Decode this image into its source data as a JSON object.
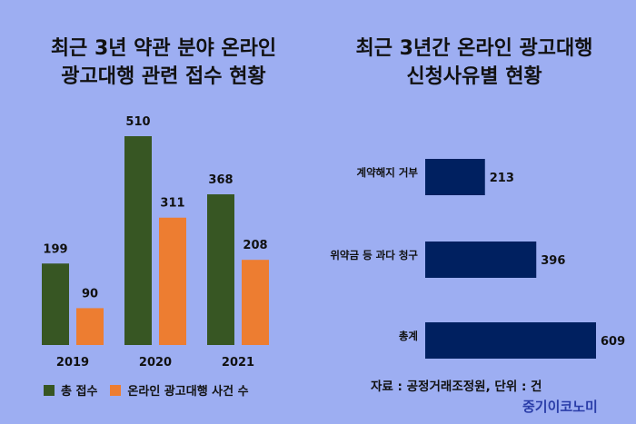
{
  "left_chart": {
    "title_line1": "최근 3년 약관 분야 온라인",
    "title_line2": "광고대행 관련 접수 현황"
  },
  "right_chart": {
    "title_line1": "최근 3년간 온라인 광고대행",
    "title_line2": "신청사유별 현황"
  },
  "legend": {
    "items": [
      {
        "label": "총 접수",
        "color": "#375623"
      },
      {
        "label": "온라인 광고대행 사건 수",
        "color": "#ED7D31"
      }
    ]
  },
  "source": "자료 : 공정거래조정원, 단위 : 건",
  "brand": "중기이코노미",
  "colors": {
    "background": "#9DAEF2",
    "green": "#375623",
    "orange": "#ED7D31",
    "navy": "#002060"
  },
  "chart_data": [
    {
      "type": "bar",
      "title": "최근 3년 약관 분야 온라인 광고대행 관련 접수 현황",
      "categories": [
        "2019",
        "2020",
        "2021"
      ],
      "series": [
        {
          "name": "총 접수",
          "values": [
            199,
            510,
            368
          ]
        },
        {
          "name": "온라인 광고대행 사건 수",
          "values": [
            90,
            311,
            208
          ]
        }
      ],
      "ylim": [
        0,
        510
      ],
      "legend": "bottom",
      "grid": false
    },
    {
      "type": "bar",
      "orientation": "horizontal",
      "title": "최근 3년간 온라인 광고대행 신청사유별 현황",
      "categories": [
        "계약해지 거부",
        "위약금 등 과다 청구",
        "총계"
      ],
      "values": [
        213,
        396,
        609
      ],
      "grid": false
    }
  ]
}
